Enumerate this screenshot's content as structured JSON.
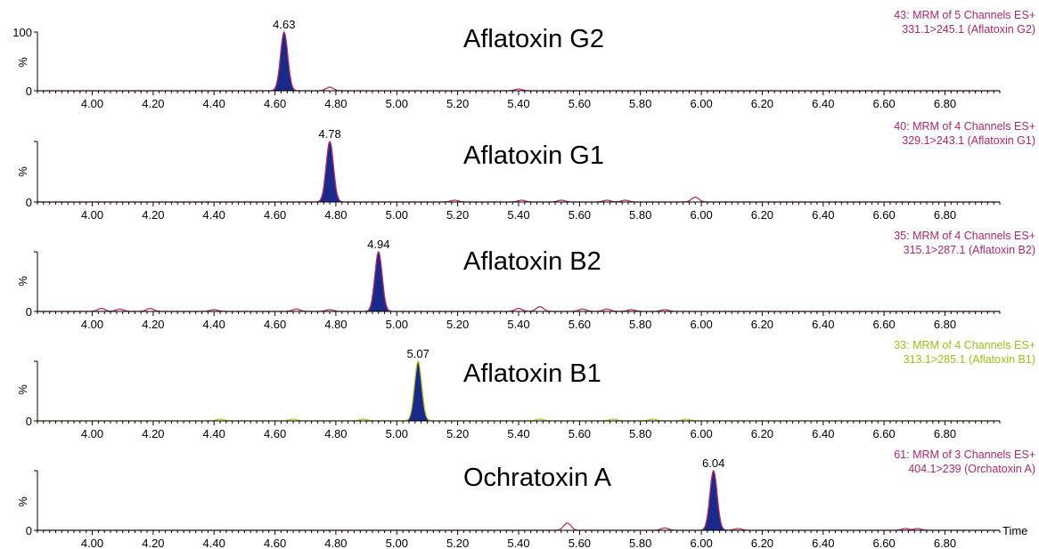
{
  "chart_data": [
    {
      "type": "line",
      "title": "Aflatoxin G2",
      "info_line1": "43: MRM of 5 Channels ES+",
      "info_line2": "331.1>245.1 (Aflatoxin G2)",
      "info_color": "#a52a6e",
      "trace_color": "#b0306a",
      "ylabel": "%",
      "y_ticks": [
        "100",
        "0"
      ],
      "peak_rt": 4.63,
      "peak_label": "4.63",
      "minor_peaks": [
        [
          4.78,
          0.06
        ],
        [
          5.4,
          0.03
        ]
      ]
    },
    {
      "type": "line",
      "title": "Aflatoxin G1",
      "info_line1": "40: MRM of 4 Channels ES+",
      "info_line2": "329.1>243.1 (Aflatoxin G1)",
      "info_color": "#a52a6e",
      "trace_color": "#b0306a",
      "ylabel": "%",
      "y_ticks": [
        "0"
      ],
      "peak_rt": 4.78,
      "peak_label": "4.78",
      "minor_peaks": [
        [
          5.19,
          0.03
        ],
        [
          5.41,
          0.03
        ],
        [
          5.54,
          0.03
        ],
        [
          5.69,
          0.03
        ],
        [
          5.75,
          0.03
        ],
        [
          5.98,
          0.08
        ]
      ]
    },
    {
      "type": "line",
      "title": "Aflatoxin B2",
      "info_line1": "35: MRM of 4 Channels ES+",
      "info_line2": "315.1>287.1 (Aflatoxin B2)",
      "info_color": "#a52a6e",
      "trace_color": "#b0306a",
      "ylabel": "%",
      "y_ticks": [
        "0"
      ],
      "peak_rt": 4.94,
      "peak_label": "4.94",
      "minor_peaks": [
        [
          4.03,
          0.05
        ],
        [
          4.09,
          0.04
        ],
        [
          4.19,
          0.05
        ],
        [
          4.4,
          0.03
        ],
        [
          4.67,
          0.04
        ],
        [
          4.78,
          0.03
        ],
        [
          5.4,
          0.05
        ],
        [
          5.47,
          0.08
        ],
        [
          5.61,
          0.04
        ],
        [
          5.69,
          0.04
        ],
        [
          5.77,
          0.03
        ],
        [
          5.88,
          0.03
        ]
      ]
    },
    {
      "type": "line",
      "title": "Aflatoxin B1",
      "info_line1": "33: MRM of 4 Channels ES+",
      "info_line2": "313.1>285.1 (Aflatoxin B1)",
      "info_color": "#9bbd22",
      "trace_color": "#b8cc30",
      "ylabel": "%",
      "y_ticks": [
        "0"
      ],
      "peak_rt": 5.07,
      "peak_label": "5.07",
      "minor_peaks": [
        [
          4.42,
          0.03
        ],
        [
          4.66,
          0.03
        ],
        [
          4.89,
          0.03
        ],
        [
          5.47,
          0.03
        ],
        [
          5.71,
          0.03
        ],
        [
          5.84,
          0.03
        ],
        [
          5.95,
          0.03
        ]
      ]
    },
    {
      "type": "line",
      "title": "Ochratoxin A",
      "info_line1": "61: MRM of 3 Channels ES+",
      "info_line2": "404.1>239 (Orchatoxin A)",
      "info_color": "#a52a6e",
      "trace_color": "#b0306a",
      "ylabel": "%",
      "y_ticks": [
        "0"
      ],
      "peak_rt": 6.04,
      "peak_label": "6.04",
      "minor_peaks": [
        [
          5.56,
          0.12
        ],
        [
          5.88,
          0.04
        ],
        [
          6.12,
          0.03
        ],
        [
          6.67,
          0.03
        ],
        [
          6.71,
          0.03
        ]
      ]
    }
  ],
  "x_axis": {
    "xlim": [
      3.82,
      6.98
    ],
    "tick_labels": [
      "4.00",
      "4.20",
      "4.40",
      "4.60",
      "4.80",
      "5.00",
      "5.20",
      "5.40",
      "5.60",
      "5.80",
      "6.00",
      "6.20",
      "6.40",
      "6.60",
      "6.80"
    ],
    "label": "Time"
  },
  "colors": {
    "peak_fill": "#1a2a8a",
    "axis": "#000000"
  }
}
